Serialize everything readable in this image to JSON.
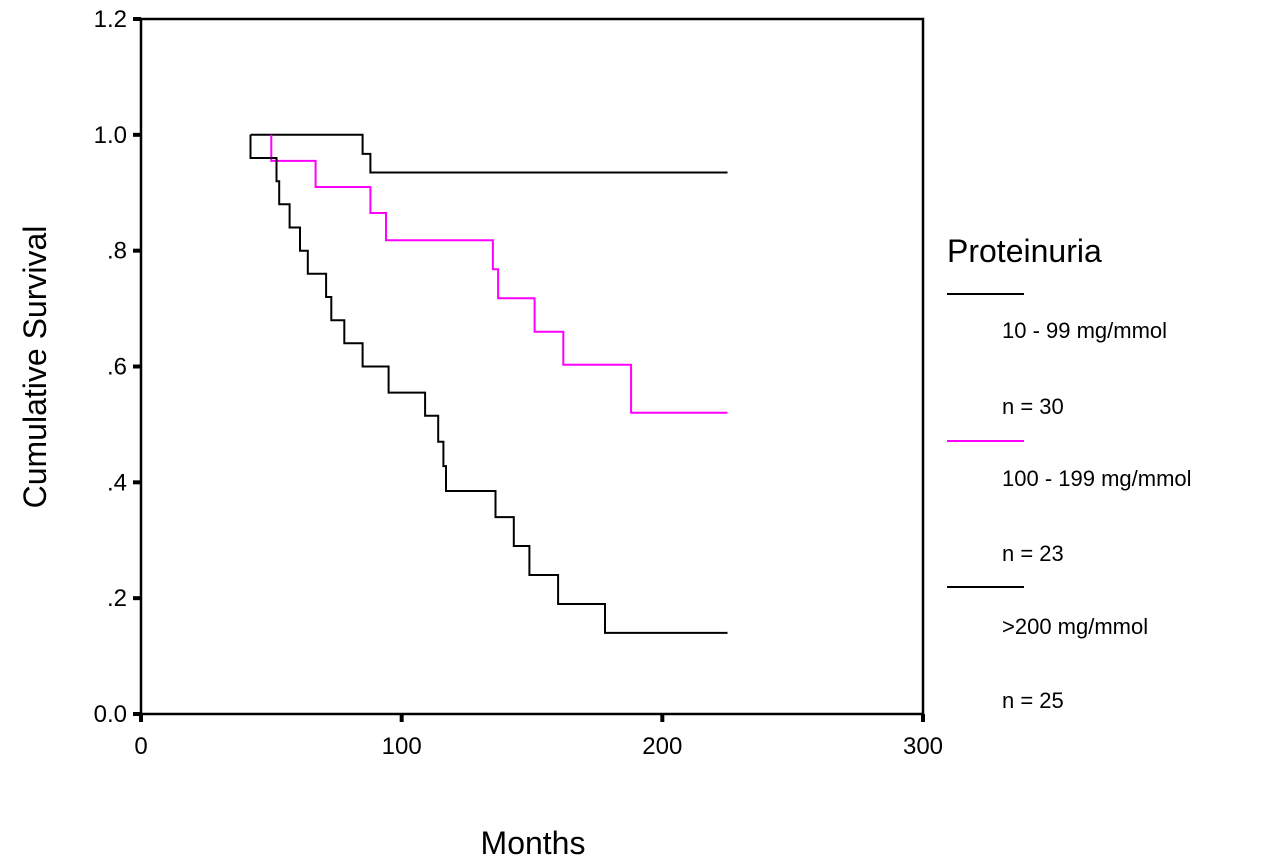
{
  "chart_data": {
    "type": "line",
    "step": true,
    "xlabel": "Months",
    "ylabel": "Cumulative Survival",
    "xlim": [
      0,
      300
    ],
    "ylim": [
      0.0,
      1.2
    ],
    "x_ticks": [
      0,
      100,
      200,
      300
    ],
    "x_tick_labels": [
      "0",
      "100",
      "200",
      "300"
    ],
    "y_ticks": [
      0.0,
      0.2,
      0.4,
      0.6,
      0.8,
      1.0,
      1.2
    ],
    "y_tick_labels": [
      "0.0",
      ".2",
      ".4",
      ".6",
      ".8",
      "1.0",
      "1.2"
    ],
    "legend_title": "Proteinuria",
    "legend_position": "right",
    "series": [
      {
        "name": "10 - 99 mg/mmol",
        "n_label": "n = 30",
        "color": "#000000",
        "points": [
          [
            42,
            1.0
          ],
          [
            85,
            1.0
          ],
          [
            85,
            0.967
          ],
          [
            88,
            0.967
          ],
          [
            88,
            0.935
          ],
          [
            225,
            0.935
          ]
        ]
      },
      {
        "name": "100 - 199 mg/mmol",
        "n_label": "n = 23",
        "color": "#ff00ff",
        "points": [
          [
            50,
            1.0
          ],
          [
            50,
            0.955
          ],
          [
            67,
            0.955
          ],
          [
            67,
            0.91
          ],
          [
            88,
            0.91
          ],
          [
            88,
            0.865
          ],
          [
            94,
            0.865
          ],
          [
            94,
            0.818
          ],
          [
            135,
            0.818
          ],
          [
            135,
            0.768
          ],
          [
            137,
            0.768
          ],
          [
            137,
            0.718
          ],
          [
            151,
            0.718
          ],
          [
            151,
            0.66
          ],
          [
            162,
            0.66
          ],
          [
            162,
            0.603
          ],
          [
            188,
            0.603
          ],
          [
            188,
            0.52
          ],
          [
            225,
            0.52
          ]
        ]
      },
      {
        "name": ">200 mg/mmol",
        "n_label": "n = 25",
        "color": "#000000",
        "points": [
          [
            42,
            1.0
          ],
          [
            42,
            0.96
          ],
          [
            52,
            0.96
          ],
          [
            52,
            0.92
          ],
          [
            53,
            0.92
          ],
          [
            53,
            0.88
          ],
          [
            57,
            0.88
          ],
          [
            57,
            0.84
          ],
          [
            61,
            0.84
          ],
          [
            61,
            0.8
          ],
          [
            64,
            0.8
          ],
          [
            64,
            0.76
          ],
          [
            71,
            0.76
          ],
          [
            71,
            0.72
          ],
          [
            73,
            0.72
          ],
          [
            73,
            0.68
          ],
          [
            78,
            0.68
          ],
          [
            78,
            0.64
          ],
          [
            85,
            0.64
          ],
          [
            85,
            0.6
          ],
          [
            95,
            0.6
          ],
          [
            95,
            0.555
          ],
          [
            109,
            0.555
          ],
          [
            109,
            0.515
          ],
          [
            114,
            0.515
          ],
          [
            114,
            0.47
          ],
          [
            116,
            0.47
          ],
          [
            116,
            0.428
          ],
          [
            117,
            0.428
          ],
          [
            117,
            0.385
          ],
          [
            136,
            0.385
          ],
          [
            136,
            0.34
          ],
          [
            143,
            0.34
          ],
          [
            143,
            0.29
          ],
          [
            149,
            0.29
          ],
          [
            149,
            0.24
          ],
          [
            160,
            0.24
          ],
          [
            160,
            0.19
          ],
          [
            178,
            0.19
          ],
          [
            178,
            0.14
          ],
          [
            225,
            0.14
          ]
        ]
      }
    ]
  }
}
